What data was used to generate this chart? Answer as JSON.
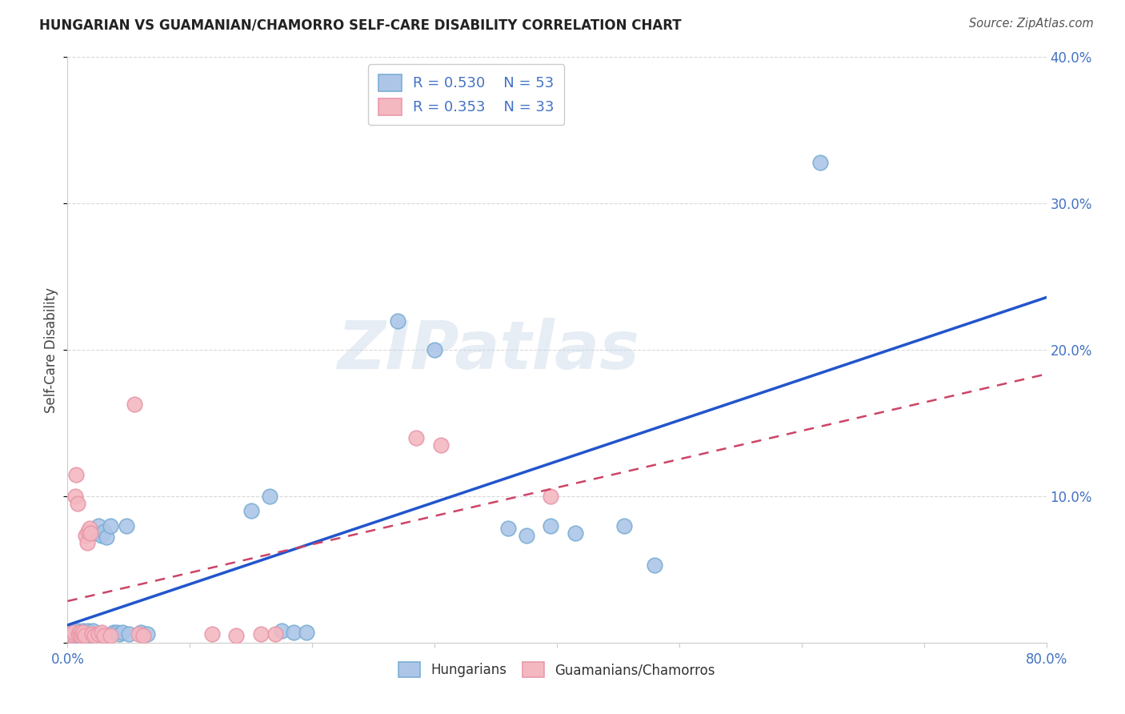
{
  "title": "HUNGARIAN VS GUAMANIAN/CHAMORRO SELF-CARE DISABILITY CORRELATION CHART",
  "source": "Source: ZipAtlas.com",
  "ylabel": "Self-Care Disability",
  "xlim": [
    0.0,
    0.8
  ],
  "ylim": [
    0.0,
    0.4
  ],
  "xtick_positions": [
    0.0,
    0.1,
    0.2,
    0.3,
    0.4,
    0.5,
    0.6,
    0.7,
    0.8
  ],
  "xtick_labels": [
    "0.0%",
    "",
    "",
    "",
    "",
    "",
    "",
    "",
    "80.0%"
  ],
  "ytick_positions": [
    0.0,
    0.1,
    0.2,
    0.3,
    0.4
  ],
  "ytick_labels": [
    "",
    "10.0%",
    "20.0%",
    "30.0%",
    "40.0%"
  ],
  "legend_r_blue": "0.530",
  "legend_n_blue": "53",
  "legend_r_pink": "0.353",
  "legend_n_pink": "33",
  "watermark": "ZIPatlas",
  "scatter_blue": [
    [
      0.002,
      0.005
    ],
    [
      0.003,
      0.006
    ],
    [
      0.004,
      0.004
    ],
    [
      0.005,
      0.007
    ],
    [
      0.005,
      0.005
    ],
    [
      0.006,
      0.006
    ],
    [
      0.007,
      0.007
    ],
    [
      0.008,
      0.005
    ],
    [
      0.008,
      0.008
    ],
    [
      0.009,
      0.006
    ],
    [
      0.01,
      0.007
    ],
    [
      0.01,
      0.005
    ],
    [
      0.011,
      0.006
    ],
    [
      0.012,
      0.007
    ],
    [
      0.012,
      0.005
    ],
    [
      0.013,
      0.006
    ],
    [
      0.013,
      0.008
    ],
    [
      0.014,
      0.006
    ],
    [
      0.015,
      0.007
    ],
    [
      0.016,
      0.005
    ],
    [
      0.017,
      0.008
    ],
    [
      0.018,
      0.006
    ],
    [
      0.019,
      0.007
    ],
    [
      0.02,
      0.006
    ],
    [
      0.021,
      0.008
    ],
    [
      0.022,
      0.075
    ],
    [
      0.025,
      0.08
    ],
    [
      0.028,
      0.073
    ],
    [
      0.03,
      0.076
    ],
    [
      0.032,
      0.072
    ],
    [
      0.035,
      0.08
    ],
    [
      0.038,
      0.007
    ],
    [
      0.04,
      0.007
    ],
    [
      0.042,
      0.006
    ],
    [
      0.045,
      0.007
    ],
    [
      0.048,
      0.08
    ],
    [
      0.05,
      0.006
    ],
    [
      0.06,
      0.007
    ],
    [
      0.065,
      0.006
    ],
    [
      0.15,
      0.09
    ],
    [
      0.165,
      0.1
    ],
    [
      0.175,
      0.008
    ],
    [
      0.185,
      0.007
    ],
    [
      0.195,
      0.007
    ],
    [
      0.27,
      0.22
    ],
    [
      0.3,
      0.2
    ],
    [
      0.36,
      0.078
    ],
    [
      0.375,
      0.073
    ],
    [
      0.395,
      0.08
    ],
    [
      0.415,
      0.075
    ],
    [
      0.455,
      0.08
    ],
    [
      0.48,
      0.053
    ],
    [
      0.615,
      0.328
    ]
  ],
  "scatter_pink": [
    [
      0.003,
      0.005
    ],
    [
      0.004,
      0.006
    ],
    [
      0.005,
      0.007
    ],
    [
      0.006,
      0.1
    ],
    [
      0.007,
      0.115
    ],
    [
      0.008,
      0.095
    ],
    [
      0.009,
      0.006
    ],
    [
      0.01,
      0.007
    ],
    [
      0.011,
      0.005
    ],
    [
      0.012,
      0.006
    ],
    [
      0.013,
      0.007
    ],
    [
      0.014,
      0.005
    ],
    [
      0.015,
      0.073
    ],
    [
      0.016,
      0.068
    ],
    [
      0.017,
      0.076
    ],
    [
      0.018,
      0.078
    ],
    [
      0.019,
      0.075
    ],
    [
      0.02,
      0.006
    ],
    [
      0.022,
      0.005
    ],
    [
      0.025,
      0.006
    ],
    [
      0.028,
      0.007
    ],
    [
      0.03,
      0.005
    ],
    [
      0.035,
      0.005
    ],
    [
      0.055,
      0.163
    ],
    [
      0.118,
      0.006
    ],
    [
      0.138,
      0.005
    ],
    [
      0.158,
      0.006
    ],
    [
      0.285,
      0.14
    ],
    [
      0.305,
      0.135
    ],
    [
      0.058,
      0.006
    ],
    [
      0.17,
      0.006
    ],
    [
      0.062,
      0.005
    ],
    [
      0.395,
      0.1
    ]
  ],
  "blue_line_color": "#2255cc",
  "pink_line_color": "#cc4466",
  "background_color": "#ffffff",
  "grid_color": "#d8d8d8",
  "scatter_blue_color": "#adc6e8",
  "scatter_pink_color": "#f4b8c1",
  "scatter_blue_edge": "#7bafd4",
  "scatter_pink_edge": "#e899aa"
}
